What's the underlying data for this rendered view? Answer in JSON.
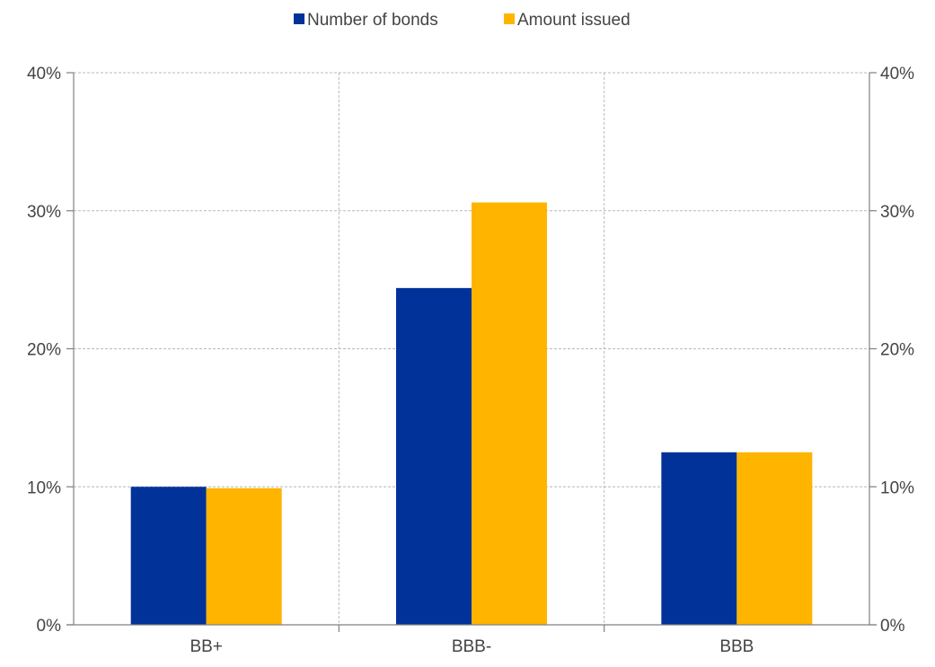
{
  "chart_data": {
    "type": "bar",
    "categories": [
      "BB+",
      "BBB-",
      "BBB"
    ],
    "series": [
      {
        "name": "Number of bonds",
        "values": [
          10.0,
          24.4,
          12.5
        ],
        "color": "#003299"
      },
      {
        "name": "Amount issued",
        "values": [
          9.9,
          30.6,
          12.5
        ],
        "color": "#FFB400"
      }
    ],
    "ylim": [
      0,
      40
    ],
    "yticks": [
      0,
      10,
      20,
      30,
      40
    ],
    "ytick_labels": [
      "0%",
      "10%",
      "20%",
      "30%",
      "40%"
    ],
    "y2_ticks": [
      0,
      10,
      20,
      30,
      40
    ],
    "y2_tick_labels": [
      "0%",
      "10%",
      "20%",
      "30%",
      "40%"
    ],
    "title": "",
    "xlabel": "",
    "ylabel": "",
    "grid": true,
    "legend_position": "top-center"
  }
}
